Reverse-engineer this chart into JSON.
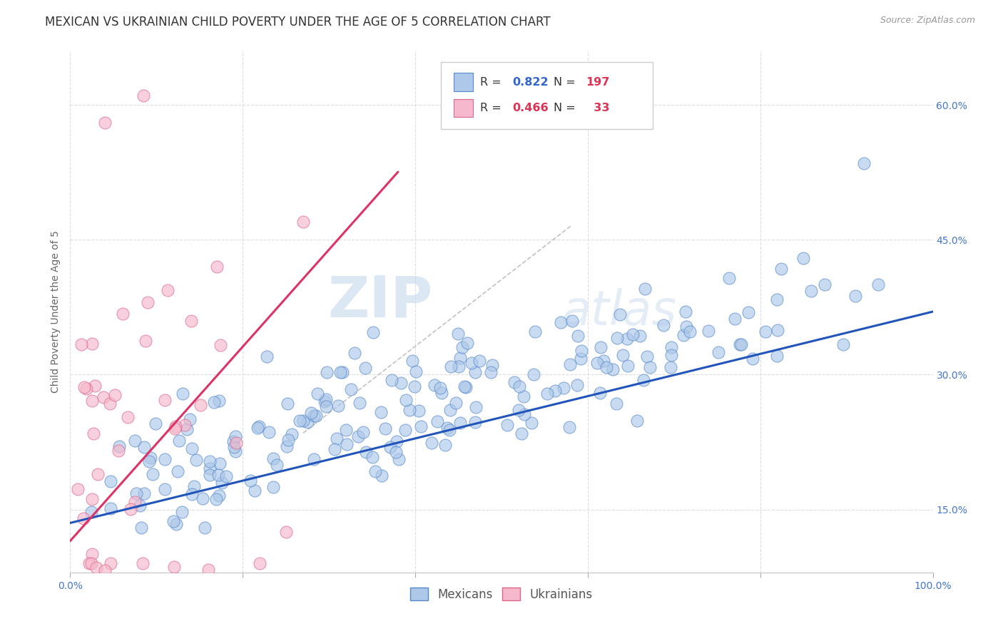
{
  "title": "MEXICAN VS UKRAINIAN CHILD POVERTY UNDER THE AGE OF 5 CORRELATION CHART",
  "source": "Source: ZipAtlas.com",
  "ylabel": "Child Poverty Under the Age of 5",
  "xlim": [
    0,
    1.0
  ],
  "ylim": [
    0.08,
    0.66
  ],
  "plot_ylim": [
    0.1,
    0.65
  ],
  "xtick_vals": [
    0.0,
    0.2,
    0.4,
    0.6,
    0.8,
    1.0
  ],
  "xtick_labels": [
    "0.0%",
    "",
    "",
    "",
    "",
    "100.0%"
  ],
  "ytick_positions": [
    0.15,
    0.3,
    0.45,
    0.6
  ],
  "ytick_labels": [
    "15.0%",
    "30.0%",
    "45.0%",
    "60.0%"
  ],
  "mexican_fill": "#adc8e8",
  "ukrainian_fill": "#f5b8cc",
  "mexican_edge": "#5588cc",
  "ukrainian_edge": "#dd6688",
  "trend_mexican_color": "#2255bb",
  "trend_ukrainian_color": "#dd3366",
  "trend_dashed_color": "#bbbbbb",
  "R_mexican": 0.822,
  "N_mexican": 197,
  "R_ukrainian": 0.466,
  "N_ukrainian": 33,
  "watermark_zip": "ZIP",
  "watermark_atlas": "atlas",
  "background_color": "#ffffff",
  "grid_color": "#dddddd",
  "title_fontsize": 12,
  "axis_label_fontsize": 10,
  "tick_fontsize": 10
}
